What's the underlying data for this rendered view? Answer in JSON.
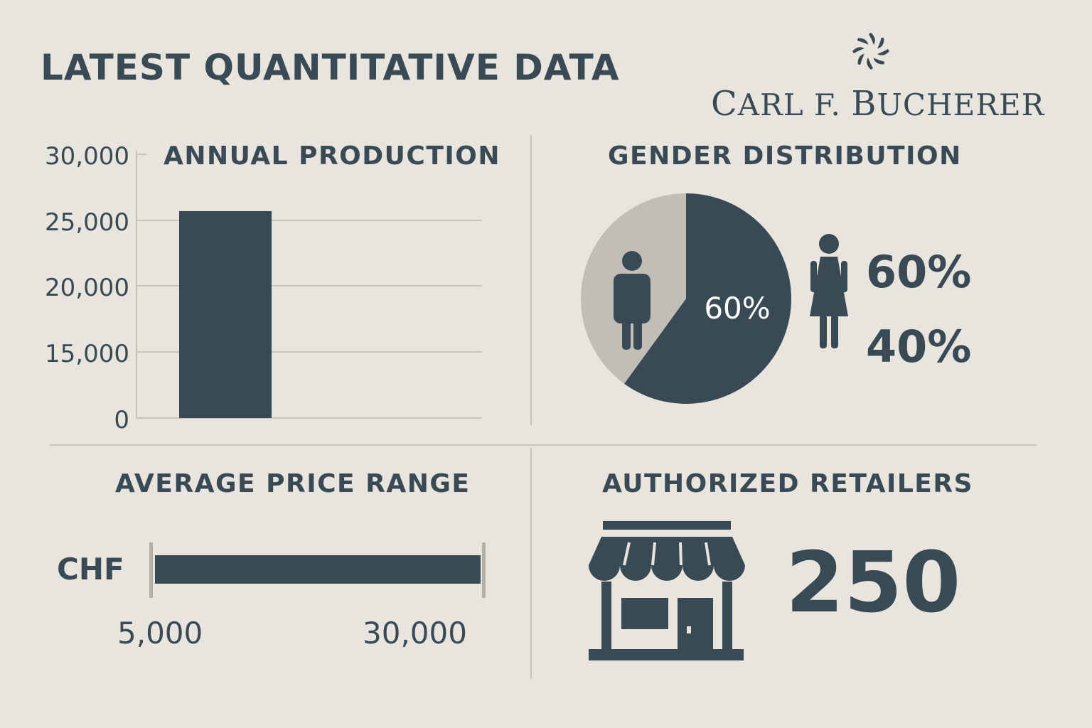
{
  "header": {
    "title": "LATEST QUANTITATIVE DATA",
    "brand": "Carl F. Bucherer",
    "brand_icon": "rotating-seal-icon"
  },
  "colors": {
    "background": "#e8e5df",
    "primary": "#3a4a55",
    "secondary": "#c1beb7",
    "grid": "#c7c4bd"
  },
  "chart_data": [
    {
      "type": "bar",
      "title": "ANNUAL PRODUCTION",
      "categories": [
        ""
      ],
      "values": [
        25700
      ],
      "yticks": [
        "0",
        "15,000",
        "20,000",
        "25,000",
        "30,000"
      ],
      "ylim": [
        0,
        30000
      ],
      "grid": true
    },
    {
      "type": "pie",
      "title": "GENDER DISTRIBUTION",
      "slices": [
        {
          "label": "men",
          "value": 60,
          "icon": "man-icon"
        },
        {
          "label": "women",
          "value": 40,
          "icon": "woman-icon"
        }
      ],
      "inner_label": "60%",
      "legend_values": [
        "60%",
        "40%"
      ]
    }
  ],
  "price_range": {
    "title": "AVERAGE PRICE RANGE",
    "currency": "CHF",
    "min_label": "5,000",
    "max_label": "30,000",
    "min": 5000,
    "max": 30000
  },
  "retailers": {
    "title": "AUTHORIZED RETAILERS",
    "count": "250",
    "icon": "storefront-icon"
  }
}
